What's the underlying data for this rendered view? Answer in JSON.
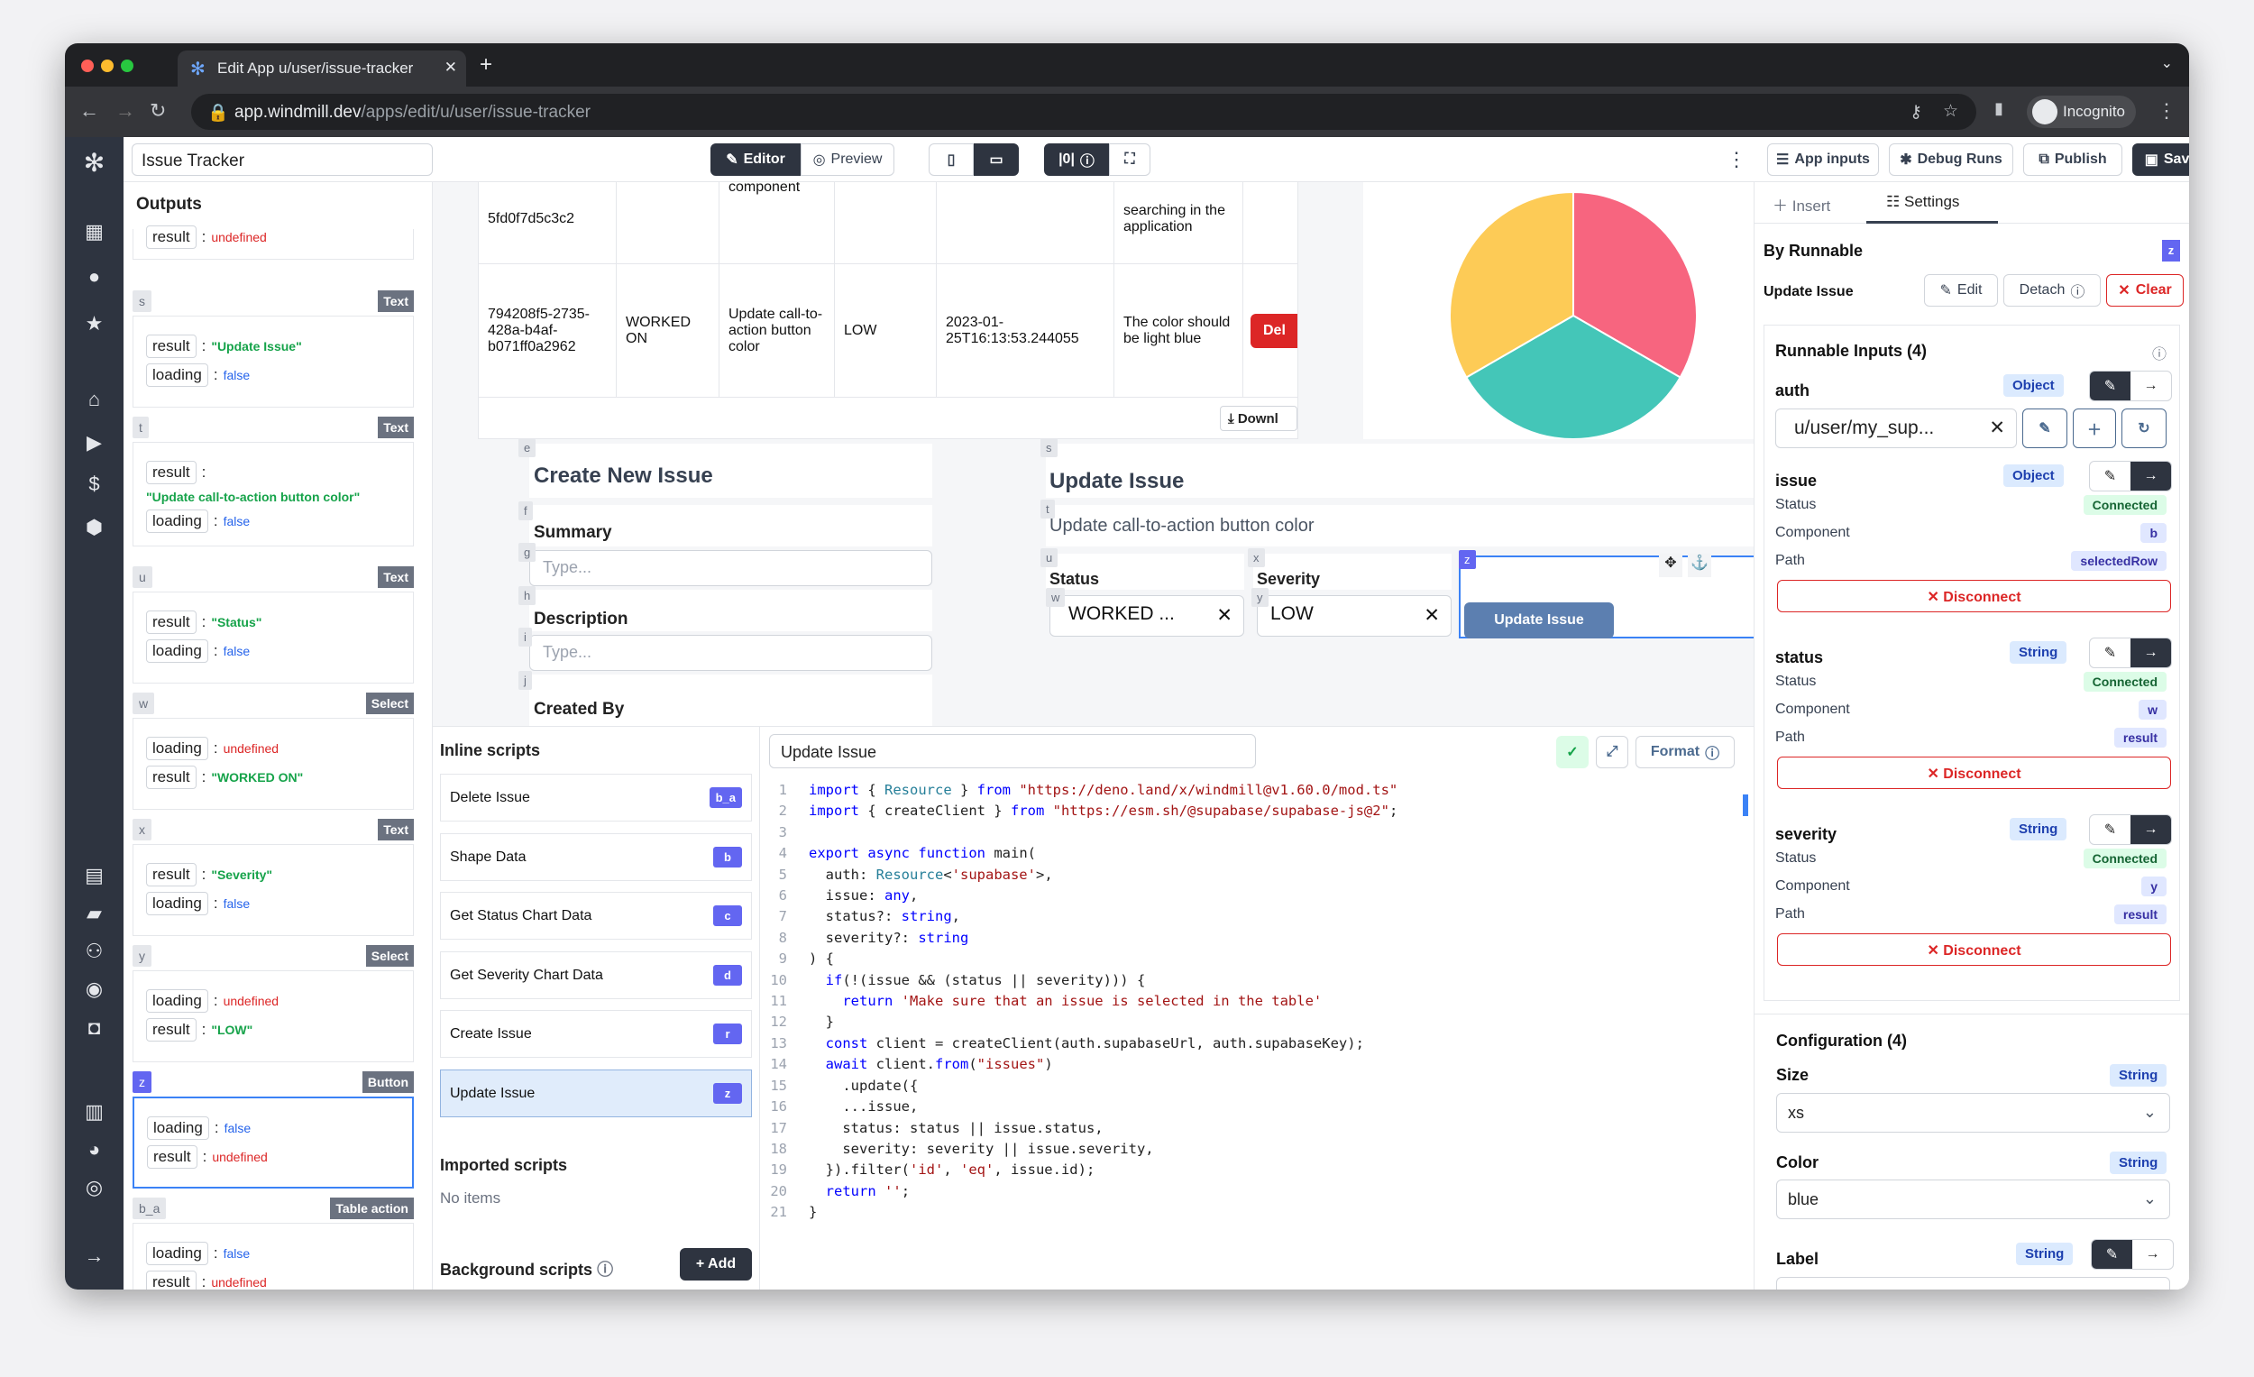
{
  "browser": {
    "tab_title": "Edit App u/user/issue-tracker",
    "url_host": "app.windmill.dev",
    "url_path": "/apps/edit/u/user/issue-tracker",
    "profile": "Incognito"
  },
  "topbar": {
    "app_name": "Issue Tracker",
    "editor": "Editor",
    "preview": "Preview",
    "app_inputs": "App inputs",
    "debug_runs": "Debug Runs",
    "publish": "Publish",
    "save": "Save"
  },
  "outputs": {
    "title": "Outputs",
    "top_partial": {
      "key": "result",
      "value": "undefined"
    },
    "cards": [
      {
        "id": "s",
        "type": "Text",
        "rows": [
          {
            "k": "result",
            "v": "\"Update Issue\"",
            "c": "vs"
          },
          {
            "k": "loading",
            "v": "false",
            "c": "vb"
          }
        ]
      },
      {
        "id": "t",
        "type": "Text",
        "rows": [
          {
            "k": "result",
            "v": "\"Update call-to-action button color\"",
            "c": "vs"
          },
          {
            "k": "loading",
            "v": "false",
            "c": "vb"
          }
        ]
      },
      {
        "id": "u",
        "type": "Text",
        "rows": [
          {
            "k": "result",
            "v": "\"Status\"",
            "c": "vs"
          },
          {
            "k": "loading",
            "v": "false",
            "c": "vb"
          }
        ]
      },
      {
        "id": "w",
        "type": "Select",
        "rows": [
          {
            "k": "loading",
            "v": "undefined",
            "c": "vu"
          },
          {
            "k": "result",
            "v": "\"WORKED ON\"",
            "c": "vs"
          }
        ]
      },
      {
        "id": "x",
        "type": "Text",
        "rows": [
          {
            "k": "result",
            "v": "\"Severity\"",
            "c": "vs"
          },
          {
            "k": "loading",
            "v": "false",
            "c": "vb"
          }
        ]
      },
      {
        "id": "y",
        "type": "Select",
        "rows": [
          {
            "k": "loading",
            "v": "undefined",
            "c": "vu"
          },
          {
            "k": "result",
            "v": "\"LOW\"",
            "c": "vs"
          }
        ]
      },
      {
        "id": "z",
        "type": "Button",
        "selected": true,
        "rows": [
          {
            "k": "loading",
            "v": "false",
            "c": "vb"
          },
          {
            "k": "result",
            "v": "undefined",
            "c": "vu"
          }
        ]
      },
      {
        "id": "b_a",
        "type": "Table action",
        "rows": [
          {
            "k": "loading",
            "v": "false",
            "c": "vb"
          },
          {
            "k": "result",
            "v": "undefined",
            "c": "vu"
          }
        ]
      }
    ]
  },
  "table": {
    "row1": [
      "5fd0f7d5c3c2",
      "",
      "component",
      "",
      "",
      "searching in the application"
    ],
    "row2": [
      "794208f5-2735-428a-b4af-b071ff0a2962",
      "WORKED ON",
      "Update call-to-action button color",
      "LOW",
      "2023-01-25T16:13:53.244055",
      "The color should be light blue"
    ],
    "delete_label": "Del",
    "download_label": "Downl"
  },
  "pie": {
    "values": [
      1,
      1,
      1
    ],
    "colors": [
      "#f7657f",
      "#44c6b8",
      "#fdcb56"
    ]
  },
  "create_form": {
    "title": "Create New Issue",
    "summary_label": "Summary",
    "summary_placeholder": "Type...",
    "description_label": "Description",
    "description_placeholder": "Type...",
    "created_by_label": "Created By",
    "ids": [
      "e",
      "f",
      "g",
      "h",
      "i",
      "j"
    ]
  },
  "update_form": {
    "title": "Update Issue",
    "subtitle": "Update call-to-action button color",
    "status_label": "Status",
    "status_value": "WORKED ...",
    "severity_label": "Severity",
    "severity_value": "LOW",
    "button": "Update Issue",
    "ids": [
      "s",
      "t",
      "u",
      "x",
      "w",
      "y",
      "z"
    ]
  },
  "scripts": {
    "inline_title": "Inline scripts",
    "items": [
      {
        "label": "Delete Issue",
        "badge": "b_a"
      },
      {
        "label": "Shape Data",
        "badge": "b"
      },
      {
        "label": "Get Status Chart Data",
        "badge": "c"
      },
      {
        "label": "Get Severity Chart Data",
        "badge": "d"
      },
      {
        "label": "Create Issue",
        "badge": "r"
      },
      {
        "label": "Update Issue",
        "badge": "z",
        "selected": true
      }
    ],
    "imported_title": "Imported scripts",
    "imported_empty": "No items",
    "background_title": "Background scripts",
    "add": "+ Add"
  },
  "editor": {
    "script_name": "Update Issue",
    "format": "Format",
    "lines": [
      "import { Resource } from \"https://deno.land/x/windmill@v1.60.0/mod.ts\"",
      "import { createClient } from \"https://esm.sh/@supabase/supabase-js@2\";",
      "",
      "export async function main(",
      "  auth: Resource<'supabase'>,",
      "  issue: any,",
      "  status?: string,",
      "  severity?: string",
      ") {",
      "  if(!(issue && (status || severity))) {",
      "    return 'Make sure that an issue is selected in the table'",
      "  }",
      "  const client = createClient(auth.supabaseUrl, auth.supabaseKey);",
      "  await client.from(\"issues\")",
      "    .update({",
      "    ...issue,",
      "    status: status || issue.status,",
      "    severity: severity || issue.severity,",
      "  }).filter('id', 'eq', issue.id);",
      "  return '';",
      "}"
    ]
  },
  "settings": {
    "tab_insert": "Insert",
    "tab_settings": "Settings",
    "by_runnable": "By Runnable",
    "component_id": "z",
    "runnable_name": "Update Issue",
    "edit": "Edit",
    "detach": "Detach",
    "clear": "Clear",
    "runnable_inputs": "Runnable Inputs (4)",
    "auth": {
      "name": "auth",
      "type": "Object",
      "value": "u/user/my_sup..."
    },
    "issue": {
      "name": "issue",
      "type": "Object",
      "status": "Connected",
      "component": "b",
      "path": "selectedRow"
    },
    "status": {
      "name": "status",
      "type": "String",
      "status": "Connected",
      "component": "w",
      "path": "result"
    },
    "severity": {
      "name": "severity",
      "type": "String",
      "status": "Connected",
      "component": "y",
      "path": "result"
    },
    "labels": {
      "status": "Status",
      "component": "Component",
      "path": "Path",
      "disconnect": "Disconnect"
    },
    "configuration": "Configuration (4)",
    "size": {
      "label": "Size",
      "type": "String",
      "value": "xs"
    },
    "color": {
      "label": "Color",
      "type": "String",
      "value": "blue"
    },
    "label": {
      "label": "Label",
      "type": "String"
    }
  }
}
